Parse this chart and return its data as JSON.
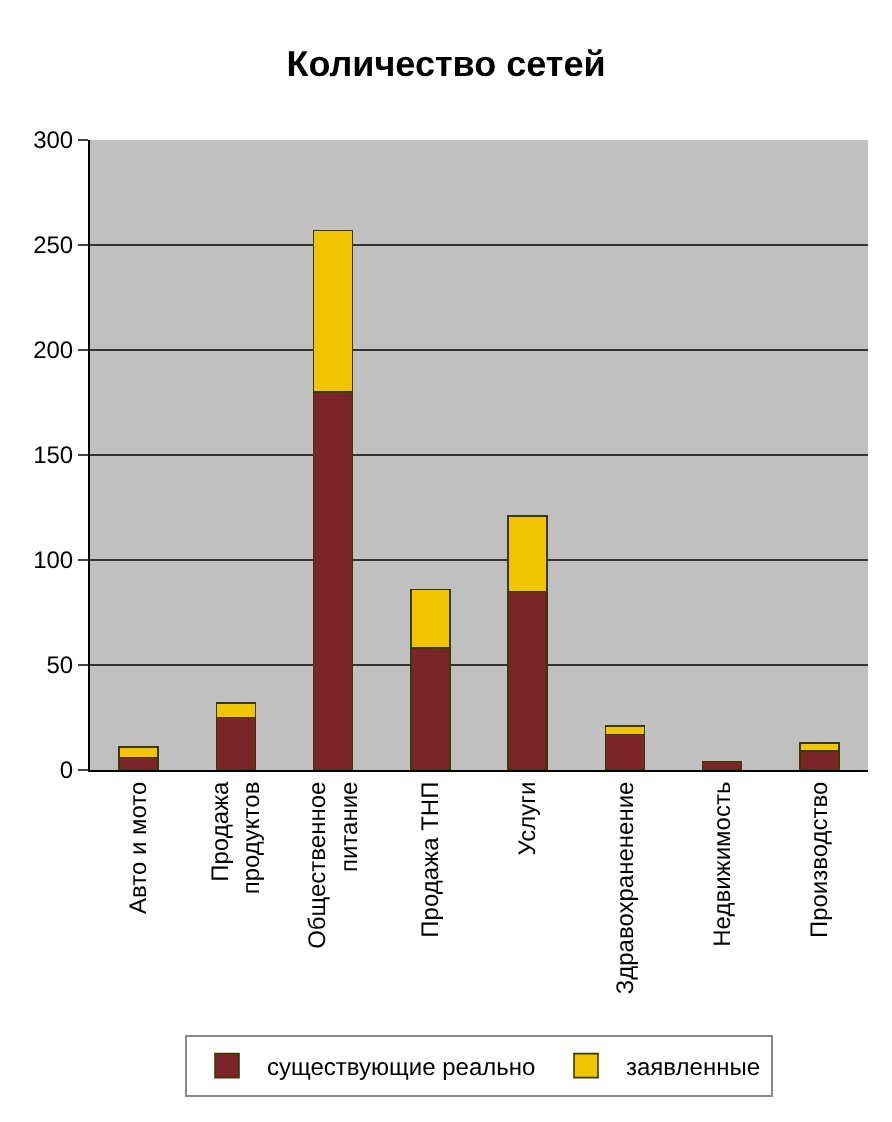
{
  "chart_data": {
    "type": "bar",
    "title": "Количество сетей",
    "stacked": true,
    "categories": [
      "Авто и мото",
      "Продажа\nпродуктов",
      "Общественное\nпитание",
      "Продажа ТНП",
      "Услуги",
      "Здравохраненение",
      "Недвижимость",
      "Производство"
    ],
    "series": [
      {
        "name": "существующие реально",
        "color": "#7b2529",
        "values": [
          6,
          25,
          180,
          58,
          85,
          17,
          4,
          9
        ]
      },
      {
        "name": "заявленные",
        "color": "#f2c400",
        "values": [
          5,
          7,
          77,
          28,
          36,
          4,
          null,
          4
        ]
      }
    ],
    "ylim": [
      0,
      300
    ],
    "yticks": [
      0,
      50,
      100,
      150,
      200,
      250,
      300
    ],
    "grid": "y",
    "legend": "bottom"
  }
}
